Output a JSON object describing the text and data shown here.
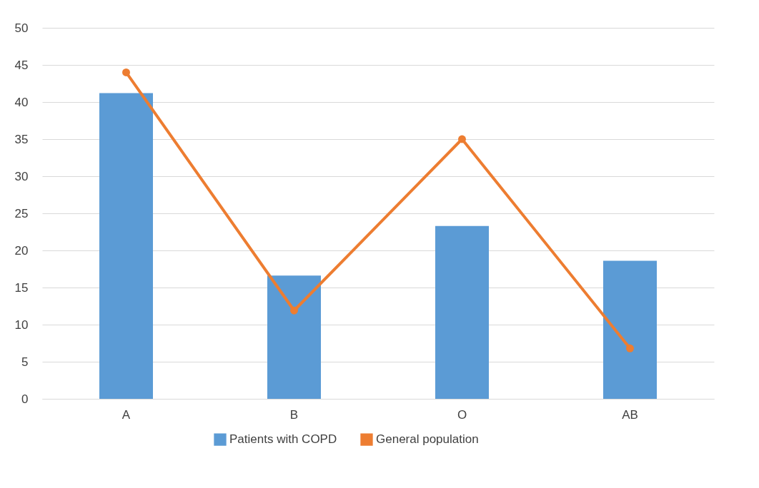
{
  "chart_data": {
    "type": "bar",
    "categories": [
      "A",
      "B",
      "O",
      "AB"
    ],
    "series": [
      {
        "name": "Patients with COPD",
        "color": "#5b9bd5",
        "values": [
          41.2,
          16.6,
          23.3,
          18.6
        ]
      },
      {
        "name": "General population",
        "color": "#ed7d31",
        "type": "line",
        "values": [
          44.0,
          11.9,
          35.0,
          6.8
        ]
      }
    ],
    "ylim": [
      0,
      50
    ],
    "yticks": [
      0,
      5,
      10,
      15,
      20,
      25,
      30,
      35,
      40,
      45,
      50
    ],
    "grid": "y",
    "legend": "bottom",
    "marker": "circle",
    "line_style": "solid"
  }
}
